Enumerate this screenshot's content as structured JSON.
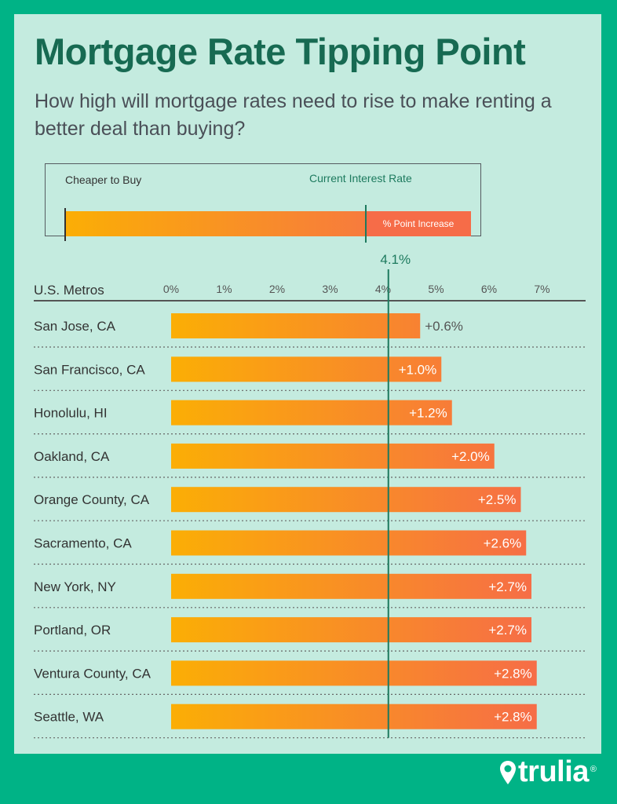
{
  "header": {
    "title": "Mortgage Rate Tipping Point",
    "subtitle": "How high will mortgage rates need to rise to make renting a better deal than buying?"
  },
  "legend": {
    "left_label": "Cheaper to Buy",
    "current_label": "Current Interest Rate",
    "increase_label": "% Point Increase"
  },
  "brand": {
    "name": "trulia",
    "reg_mark": "®"
  },
  "colors": {
    "background": "#00b386",
    "panel": "#c4ebdf",
    "title": "#176a52",
    "bar_start": "#fbae05",
    "bar_end": "#f66c48",
    "current_line": "#1d7a5e"
  },
  "chart_data": {
    "type": "bar",
    "orientation": "horizontal",
    "category_header": "U.S. Metros",
    "current_rate": 4.1,
    "current_rate_label": "4.1%",
    "xlim": [
      0,
      7
    ],
    "ticks": [
      0,
      1,
      2,
      3,
      4,
      5,
      6,
      7
    ],
    "tick_labels": [
      "0%",
      "1%",
      "2%",
      "3%",
      "4%",
      "5%",
      "6%",
      "7%"
    ],
    "categories": [
      "San Jose, CA",
      "San Francisco, CA",
      "Honolulu, HI",
      "Oakland, CA",
      "Orange County, CA",
      "Sacramento, CA",
      "New York, NY",
      "Portland, OR",
      "Ventura County, CA",
      "Seattle, WA"
    ],
    "increase_values": [
      0.6,
      1.0,
      1.2,
      2.0,
      2.5,
      2.6,
      2.7,
      2.7,
      2.8,
      2.8
    ],
    "increase_labels": [
      "+0.6%",
      "+1.0%",
      "+1.2%",
      "+2.0%",
      "+2.5%",
      "+2.6%",
      "+2.7%",
      "+2.7%",
      "+2.8%",
      "+2.8%"
    ]
  }
}
